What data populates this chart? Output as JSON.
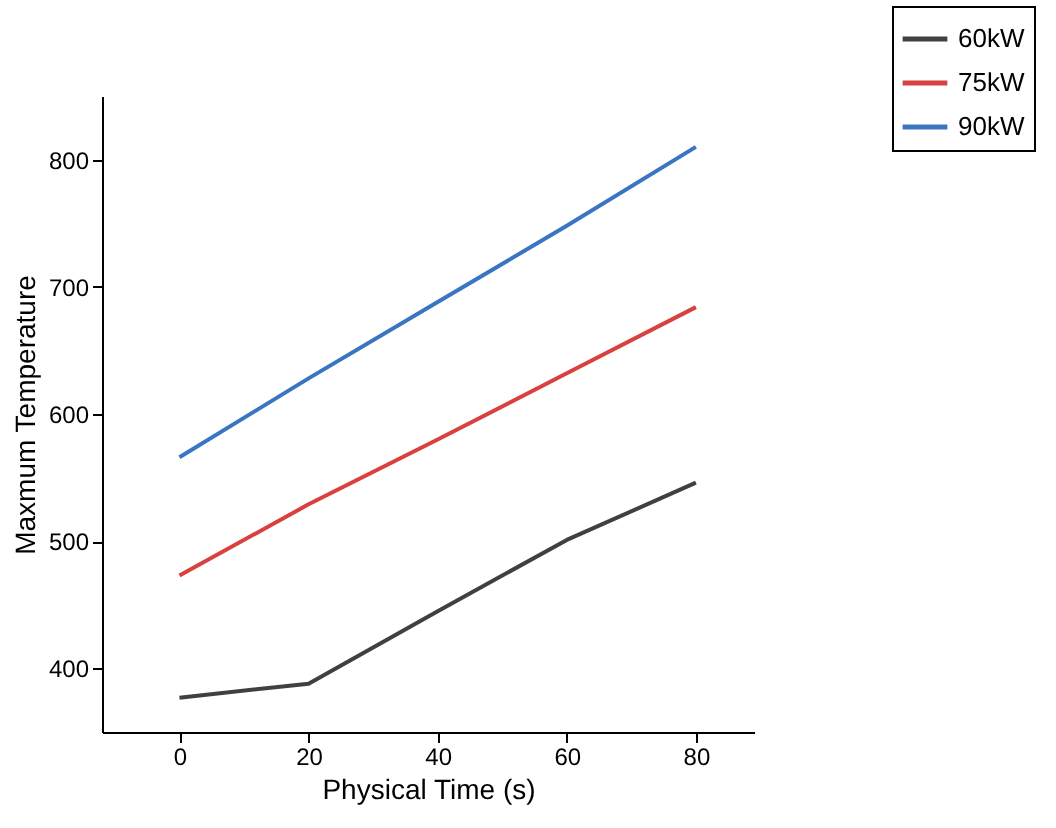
{
  "chart_data": {
    "type": "line",
    "xlabel": "Physical Time (s)",
    "ylabel": "Maxmum Temperature",
    "x": [
      0,
      20,
      40,
      60,
      80
    ],
    "series": [
      {
        "name": "60kW",
        "color": "#404040",
        "values": [
          377,
          388,
          445,
          501,
          546
        ]
      },
      {
        "name": "75kW",
        "color": "#d94040",
        "values": [
          473,
          529,
          580,
          632,
          684
        ]
      },
      {
        "name": "90kW",
        "color": "#3a75c4",
        "values": [
          566,
          628,
          688,
          748,
          810
        ]
      }
    ],
    "xlim": [
      -12,
      89
    ],
    "xticks": [
      0,
      20,
      40,
      60,
      80
    ],
    "ylim": [
      350,
      850
    ],
    "yticks": [
      400,
      500,
      600,
      700,
      800
    ],
    "grid": false,
    "legend": "top right",
    "marker": "none",
    "line_style": "solid"
  }
}
